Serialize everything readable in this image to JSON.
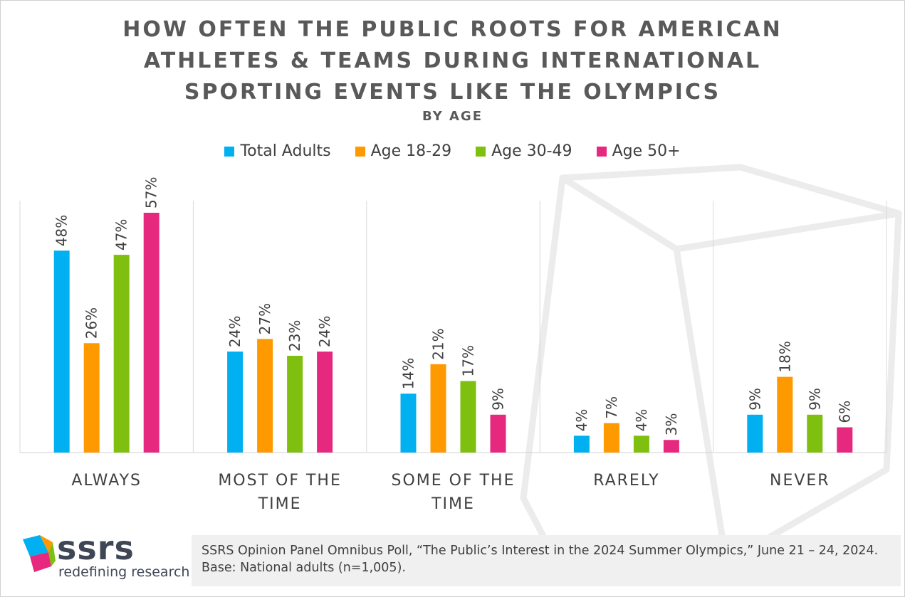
{
  "title_lines": [
    "HOW OFTEN THE PUBLIC ROOTS FOR AMERICAN",
    "ATHLETES & TEAMS DURING INTERNATIONAL",
    "SPORTING EVENTS LIKE THE OLYMPICS"
  ],
  "subtitle": "BY AGE",
  "colors": {
    "total": "#00b0f0",
    "age_18_29": "#ff9900",
    "age_30_49": "#7fbf0f",
    "age_50_plus": "#e6287f",
    "text": "#404040"
  },
  "chart_data": {
    "type": "bar",
    "title": "HOW OFTEN THE PUBLIC ROOTS FOR AMERICAN ATHLETES & TEAMS DURING INTERNATIONAL SPORTING EVENTS LIKE THE OLYMPICS",
    "subtitle": "BY AGE",
    "categories": [
      [
        "ALWAYS"
      ],
      [
        "MOST OF THE",
        "TIME"
      ],
      [
        "SOME OF THE",
        "TIME"
      ],
      [
        "RARELY"
      ],
      [
        "NEVER"
      ]
    ],
    "series": [
      {
        "name": "Total Adults",
        "values": [
          48,
          24,
          14,
          4,
          9
        ]
      },
      {
        "name": "Age 18-29",
        "values": [
          26,
          27,
          21,
          7,
          18
        ]
      },
      {
        "name": "Age 30-49",
        "values": [
          47,
          23,
          17,
          4,
          9
        ]
      },
      {
        "name": "Age 50+",
        "values": [
          57,
          24,
          9,
          3,
          6
        ]
      }
    ],
    "value_suffix": "%",
    "ylim": [
      0,
      60
    ],
    "legend": "top",
    "grid": false
  },
  "logo": {
    "name": "ssrs",
    "tagline": "redefining research"
  },
  "source": {
    "line1": "SSRS Opinion Panel Omnibus Poll, “The Public’s Interest in the 2024 Summer Olympics,” June 21 – 24, 2024.",
    "line2": "Base: National adults (n=1,005)."
  }
}
